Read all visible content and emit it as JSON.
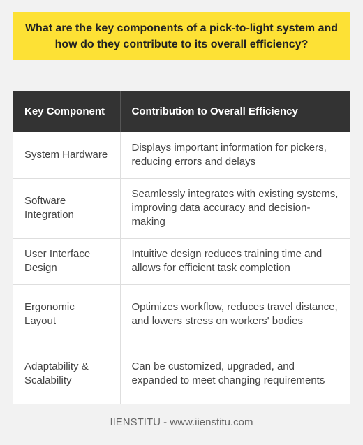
{
  "title": "What are the key components of a pick-to-light system and how do they contribute to its overall efficiency?",
  "table": {
    "headers": [
      "Key Component",
      "Contribution to Overall Efficiency"
    ],
    "rows": [
      [
        "System Hardware",
        "Displays important information for pickers, reducing errors and delays"
      ],
      [
        "Software Integration",
        "Seamlessly integrates with existing systems, improving data accuracy and decision-making"
      ],
      [
        "User Interface Design",
        "Intuitive design reduces training time and allows for efficient task completion"
      ],
      [
        "Ergonomic Layout",
        "Optimizes workflow, reduces travel distance, and lowers stress on workers' bodies"
      ],
      [
        "Adaptability & Scalability",
        "Can be customized, upgraded, and expanded to meet changing requirements"
      ]
    ]
  },
  "footer": "IIENSTITU - www.iienstitu.com",
  "colors": {
    "title_background": "#fde135",
    "header_background": "#333333",
    "page_background": "#f2f2f2"
  }
}
